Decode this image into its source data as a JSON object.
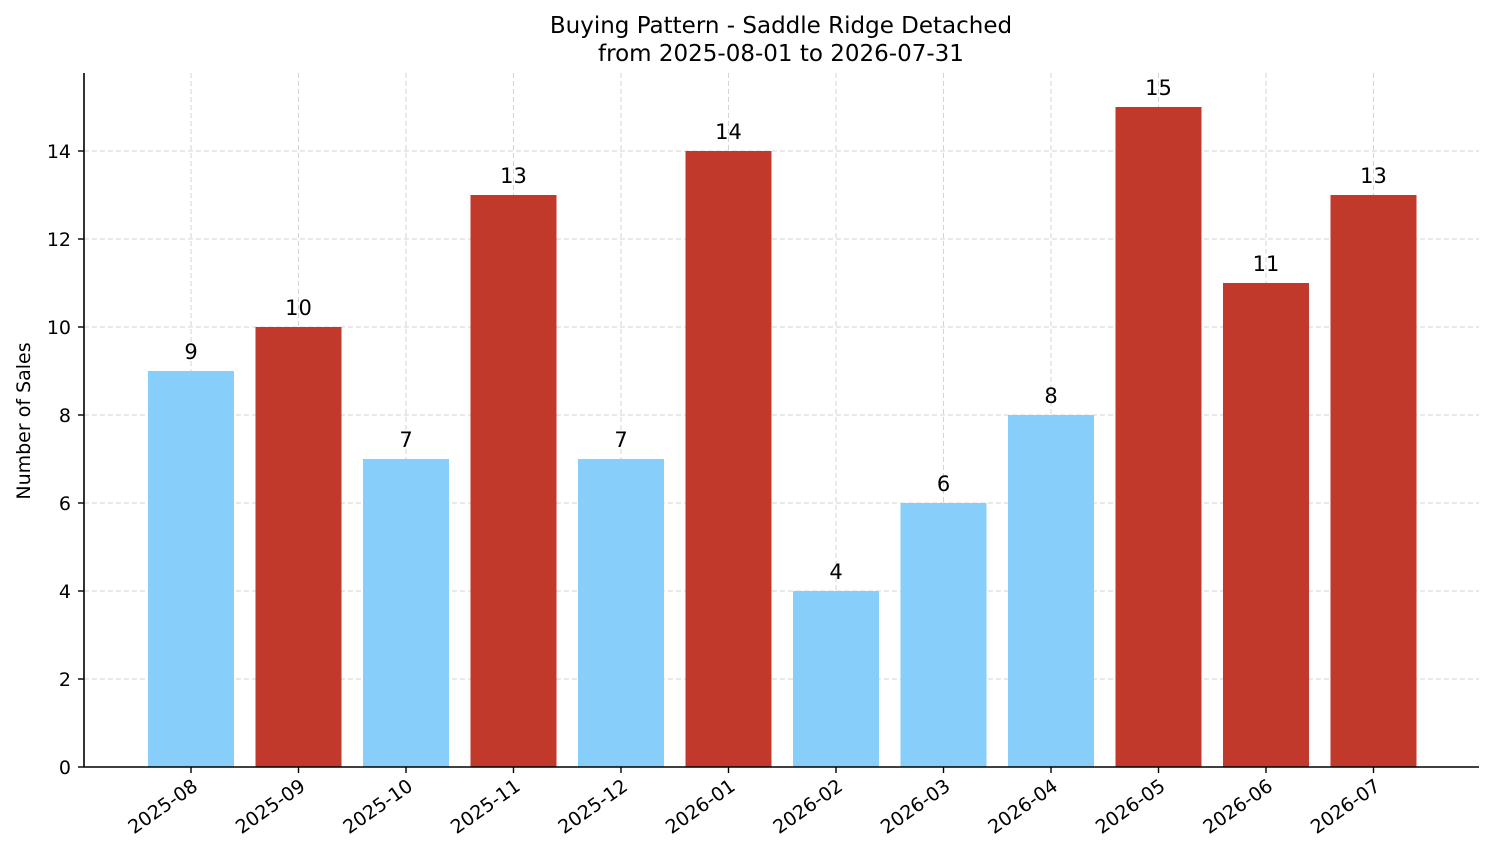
{
  "chart_data": {
    "type": "bar",
    "title": "Buying Pattern - Saddle Ridge Detached",
    "subtitle": "from 2025-08-01 to 2026-07-31",
    "xlabel": "",
    "ylabel": "Number of Sales",
    "categories": [
      "2025-08",
      "2025-09",
      "2025-10",
      "2025-11",
      "2025-12",
      "2026-01",
      "2026-02",
      "2026-03",
      "2026-04",
      "2026-05",
      "2026-06",
      "2026-07"
    ],
    "values": [
      9,
      10,
      7,
      13,
      7,
      14,
      4,
      6,
      8,
      15,
      11,
      13
    ],
    "colors": [
      "#87CEFA",
      "#C0392B",
      "#87CEFA",
      "#C0392B",
      "#87CEFA",
      "#C0392B",
      "#87CEFA",
      "#87CEFA",
      "#87CEFA",
      "#C0392B",
      "#C0392B",
      "#C0392B"
    ],
    "ylim": [
      0,
      15.75
    ],
    "yticks": [
      0,
      2,
      4,
      6,
      8,
      10,
      12,
      14
    ],
    "grid": true,
    "legend": "none"
  }
}
